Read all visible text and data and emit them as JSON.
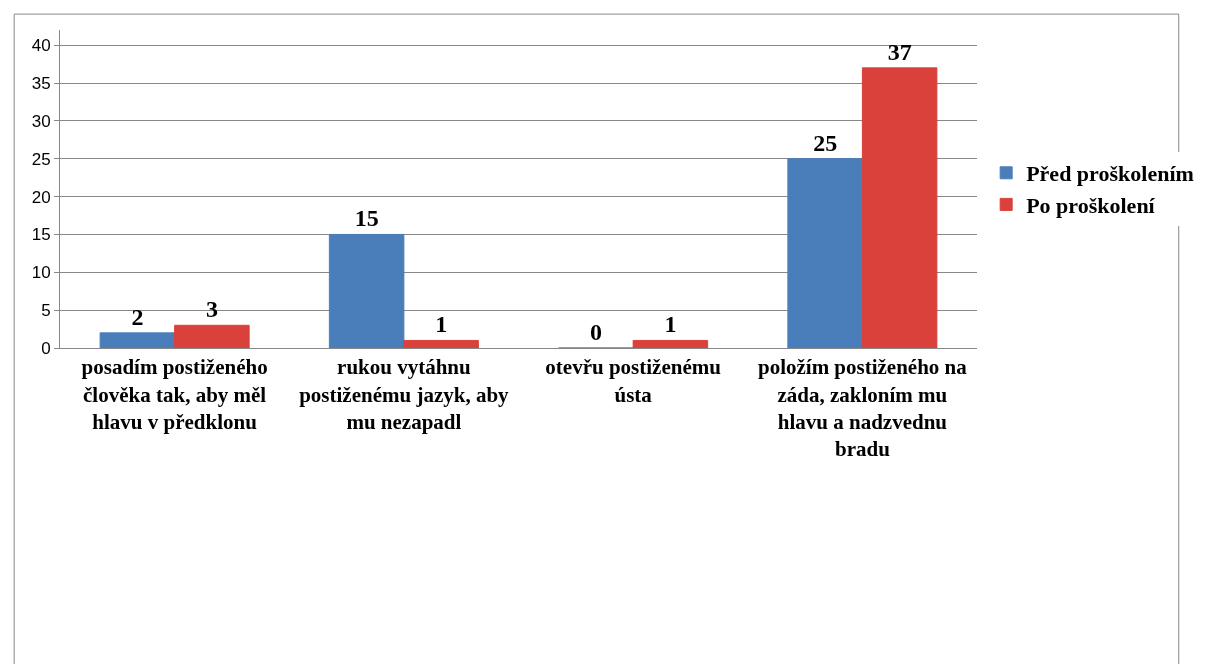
{
  "chart_data": {
    "type": "bar",
    "categories": [
      "posadím postiženého člověka tak, aby měl hlavu v předklonu",
      "rukou vytáhnu postiženému jazyk, aby mu nezapadl",
      "otevřu postiženému ústa",
      "položím postiženého na záda, zakloním mu hlavu a nadzvednu bradu"
    ],
    "series": [
      {
        "name": "Před proškolením",
        "color": "#4a7ebb",
        "values": [
          2,
          15,
          0,
          25
        ]
      },
      {
        "name": "Po proškolení",
        "color": "#d9413a",
        "values": [
          3,
          1,
          1,
          37
        ]
      }
    ],
    "ylim": [
      0,
      42
    ],
    "yticks": [
      0,
      5,
      10,
      15,
      20,
      25,
      30,
      35,
      40
    ],
    "grid": "y",
    "legend": "right",
    "data_labels": true
  }
}
